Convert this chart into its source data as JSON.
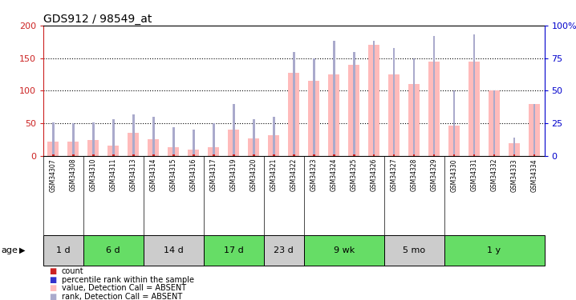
{
  "title": "GDS912 / 98549_at",
  "samples": [
    "GSM34307",
    "GSM34308",
    "GSM34310",
    "GSM34311",
    "GSM34313",
    "GSM34314",
    "GSM34315",
    "GSM34316",
    "GSM34317",
    "GSM34319",
    "GSM34320",
    "GSM34321",
    "GSM34322",
    "GSM34323",
    "GSM34324",
    "GSM34325",
    "GSM34326",
    "GSM34327",
    "GSM34328",
    "GSM34329",
    "GSM34330",
    "GSM34331",
    "GSM34332",
    "GSM34333",
    "GSM34334"
  ],
  "values_absent": [
    22,
    22,
    25,
    16,
    36,
    26,
    14,
    10,
    13,
    40,
    27,
    32,
    128,
    115,
    125,
    140,
    170,
    125,
    110,
    145,
    47,
    145,
    100,
    20,
    80
  ],
  "count": [
    3,
    3,
    3,
    3,
    3,
    3,
    2,
    2,
    2,
    2,
    2,
    2,
    3,
    3,
    3,
    3,
    3,
    3,
    3,
    3,
    3,
    3,
    3,
    2,
    3
  ],
  "rank_absent": [
    26,
    25,
    26,
    28,
    32,
    30,
    22,
    20,
    25,
    40,
    28,
    30,
    80,
    75,
    88,
    80,
    88,
    83,
    75,
    92,
    50,
    93,
    50,
    14,
    40
  ],
  "age_groups": [
    {
      "label": "1 d",
      "start": 0,
      "end": 2,
      "color": "#cccccc"
    },
    {
      "label": "6 d",
      "start": 2,
      "end": 5,
      "color": "#66dd66"
    },
    {
      "label": "14 d",
      "start": 5,
      "end": 8,
      "color": "#cccccc"
    },
    {
      "label": "17 d",
      "start": 8,
      "end": 11,
      "color": "#66dd66"
    },
    {
      "label": "23 d",
      "start": 11,
      "end": 13,
      "color": "#cccccc"
    },
    {
      "label": "9 wk",
      "start": 13,
      "end": 17,
      "color": "#66dd66"
    },
    {
      "label": "5 mo",
      "start": 17,
      "end": 20,
      "color": "#cccccc"
    },
    {
      "label": "1 y",
      "start": 20,
      "end": 25,
      "color": "#66dd66"
    }
  ],
  "bar_width": 0.55,
  "ylim_left": [
    0,
    200
  ],
  "ylim_right": [
    0,
    100
  ],
  "yticks_left": [
    0,
    50,
    100,
    150,
    200
  ],
  "yticks_right": [
    0,
    25,
    50,
    75,
    100
  ],
  "color_count": "#cc2222",
  "color_value_absent": "#ffbbbb",
  "color_rank_absent": "#aaaacc",
  "color_rank": "#3333cc",
  "bg_plot": "#ffffff",
  "bg_figure": "#ffffff",
  "axis_color_left": "#cc2222",
  "axis_color_right": "#0000cc",
  "xtick_bg": "#cccccc",
  "legend_items": [
    {
      "color": "#cc2222",
      "label": "count"
    },
    {
      "color": "#3333cc",
      "label": "percentile rank within the sample"
    },
    {
      "color": "#ffbbbb",
      "label": "value, Detection Call = ABSENT"
    },
    {
      "color": "#aaaacc",
      "label": "rank, Detection Call = ABSENT"
    }
  ]
}
